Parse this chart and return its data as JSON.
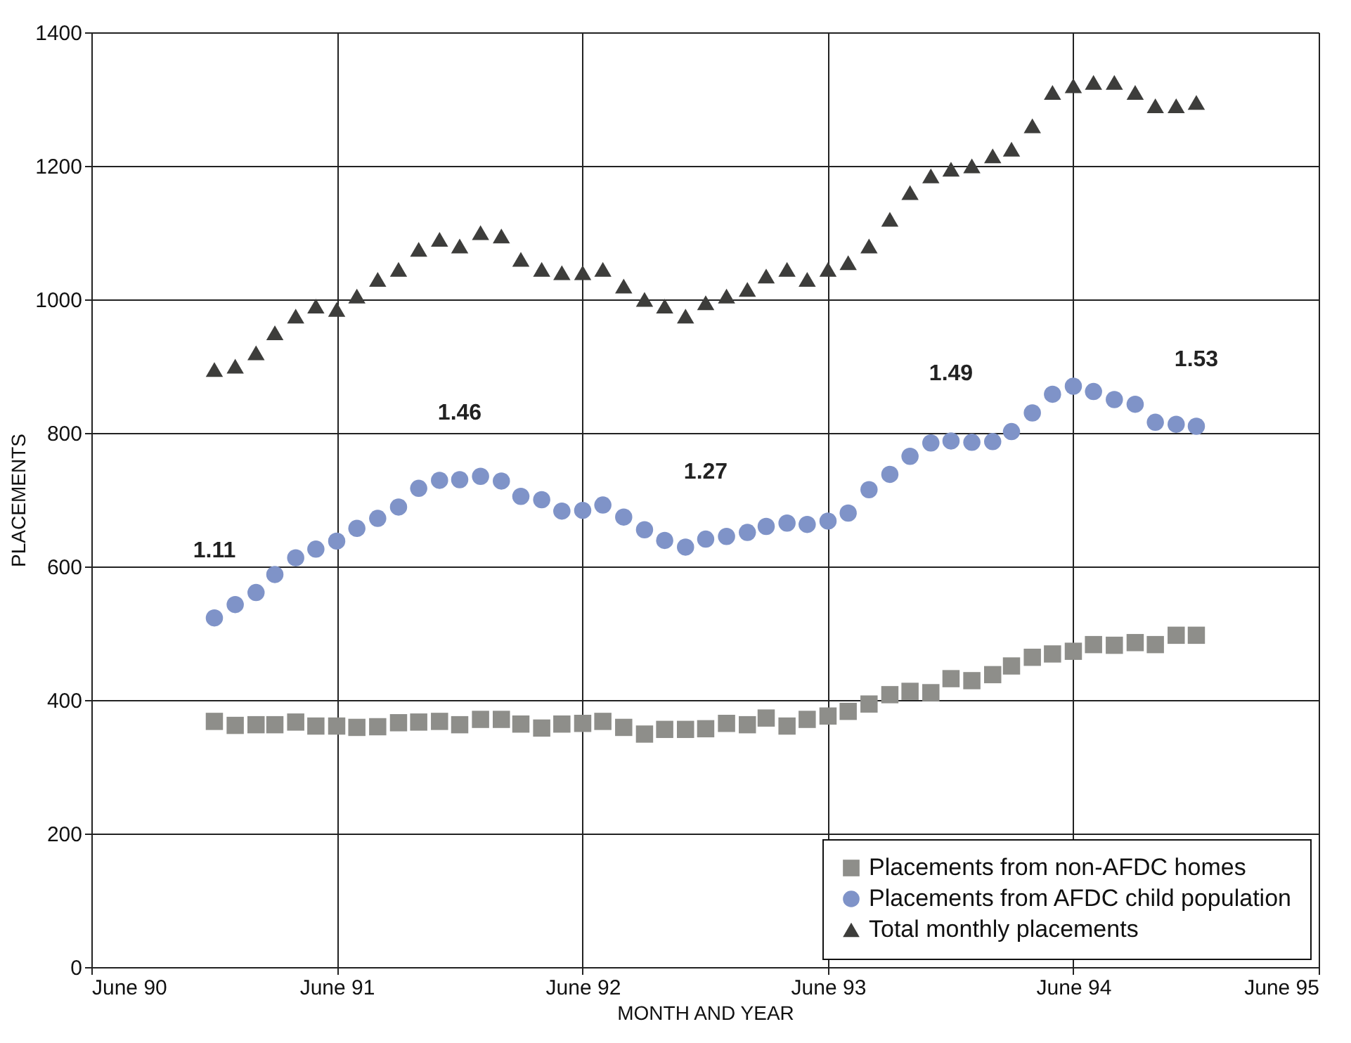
{
  "chart_data": {
    "type": "scatter",
    "xlabel": "MONTH AND YEAR",
    "ylabel": "PLACEMENTS",
    "x": [
      "1990-12",
      "1991-01",
      "1991-02",
      "1991-03",
      "1991-04",
      "1991-05",
      "1991-06",
      "1991-07",
      "1991-08",
      "1991-09",
      "1991-10",
      "1991-11",
      "1991-12",
      "1992-01",
      "1992-02",
      "1992-03",
      "1992-04",
      "1992-05",
      "1992-06",
      "1992-07",
      "1992-08",
      "1992-09",
      "1992-10",
      "1992-11",
      "1992-12",
      "1993-01",
      "1993-02",
      "1993-03",
      "1993-04",
      "1993-05",
      "1993-06",
      "1993-07",
      "1993-08",
      "1993-09",
      "1993-10",
      "1993-11",
      "1993-12",
      "1994-01",
      "1994-02",
      "1994-03",
      "1994-04",
      "1994-05",
      "1994-06",
      "1994-07",
      "1994-08",
      "1994-09",
      "1994-10",
      "1994-11",
      "1994-12"
    ],
    "series": [
      {
        "name": "Placements from non-AFDC homes",
        "color": "#8e8e8a",
        "marker": "square",
        "values": [
          368,
          362,
          363,
          363,
          367,
          361,
          361,
          359,
          360,
          366,
          367,
          368,
          363,
          371,
          371,
          364,
          358,
          364,
          365,
          368,
          359,
          349,
          356,
          356,
          357,
          365,
          363,
          373,
          361,
          371,
          376,
          383,
          394,
          408,
          413,
          411,
          432,
          429,
          438,
          451,
          464,
          469,
          473,
          483,
          482,
          486,
          483,
          497,
          497
        ]
      },
      {
        "name": "Placements from AFDC child population",
        "color": "#7f93c8",
        "marker": "circle",
        "values": [
          523,
          543,
          561,
          588,
          613,
          626,
          638,
          657,
          672,
          689,
          717,
          729,
          730,
          735,
          728,
          705,
          700,
          683,
          684,
          692,
          674,
          655,
          639,
          629,
          641,
          645,
          651,
          660,
          665,
          663,
          668,
          680,
          715,
          738,
          765,
          785,
          788,
          786,
          787,
          802,
          830,
          858,
          870,
          862,
          850,
          843,
          816,
          813,
          810
        ]
      },
      {
        "name": "Total monthly placements",
        "color": "#3d3d3b",
        "marker": "triangle",
        "values": [
          895,
          900,
          920,
          950,
          975,
          990,
          985,
          1005,
          1030,
          1045,
          1075,
          1090,
          1080,
          1100,
          1095,
          1060,
          1045,
          1040,
          1040,
          1045,
          1020,
          1000,
          990,
          975,
          995,
          1005,
          1015,
          1035,
          1045,
          1030,
          1045,
          1055,
          1080,
          1120,
          1160,
          1185,
          1195,
          1200,
          1215,
          1225,
          1260,
          1310,
          1320,
          1325,
          1325,
          1310,
          1290,
          1290,
          1295
        ]
      }
    ],
    "xlim": [
      "1990-06",
      "1995-06"
    ],
    "xticks": [
      {
        "value": "1990-06",
        "label": "June 90"
      },
      {
        "value": "1991-06",
        "label": "June 91"
      },
      {
        "value": "1992-06",
        "label": "June 92"
      },
      {
        "value": "1993-06",
        "label": "June 93"
      },
      {
        "value": "1994-06",
        "label": "June 94"
      },
      {
        "value": "1995-06",
        "label": "June 95"
      }
    ],
    "ylim": [
      0,
      1400
    ],
    "yticks": [
      0,
      200,
      400,
      600,
      800,
      1000,
      1200,
      1400
    ],
    "grid": true,
    "legend": "bottom right",
    "annotations": [
      "1.11",
      "1.46",
      "1.27",
      "1.49",
      "1.53"
    ]
  }
}
